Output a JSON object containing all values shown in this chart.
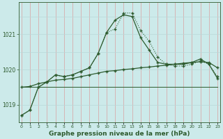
{
  "title": "Graphe pression niveau de la mer (hPa)",
  "background_color": "#cceaea",
  "grid_color_v": "#d9a0a0",
  "grid_color_h": "#b8d8d8",
  "line_color": "#2d5a2d",
  "x_values": [
    0,
    1,
    2,
    3,
    4,
    5,
    6,
    7,
    8,
    9,
    10,
    11,
    12,
    13,
    14,
    15,
    16,
    17,
    18,
    19,
    20,
    21,
    22,
    23
  ],
  "line_peak": [
    1018.7,
    1018.85,
    1019.5,
    1019.65,
    1019.85,
    1019.8,
    1019.85,
    1019.95,
    1020.05,
    1020.45,
    1021.05,
    1021.4,
    1021.55,
    1021.5,
    1020.9,
    1020.55,
    1020.2,
    1020.15,
    1020.15,
    1020.15,
    1020.2,
    1020.3,
    1020.15,
    1019.75
  ],
  "line_dotted": [
    1018.7,
    1018.85,
    1019.5,
    1019.65,
    1019.85,
    1019.8,
    1019.85,
    1019.95,
    1020.05,
    1020.45,
    1021.05,
    1021.15,
    1021.6,
    1021.6,
    1021.1,
    1020.8,
    1020.35,
    1020.15,
    1020.1,
    1020.1,
    1020.15,
    1020.25,
    1020.15,
    1019.8
  ],
  "line_rising": [
    1019.5,
    1019.52,
    1019.6,
    1019.65,
    1019.7,
    1019.72,
    1019.75,
    1019.8,
    1019.85,
    1019.9,
    1019.95,
    1019.97,
    1020.0,
    1020.02,
    1020.05,
    1020.07,
    1020.1,
    1020.12,
    1020.15,
    1020.18,
    1020.2,
    1020.22,
    1020.2,
    1020.05
  ],
  "line_flat": [
    1019.5,
    1019.5,
    1019.5,
    1019.5,
    1019.5,
    1019.5,
    1019.5,
    1019.5,
    1019.5,
    1019.5,
    1019.5,
    1019.5,
    1019.5,
    1019.5,
    1019.5,
    1019.5,
    1019.5,
    1019.5,
    1019.5,
    1019.5,
    1019.5,
    1019.5,
    1019.5,
    1019.5
  ],
  "ylim": [
    1018.5,
    1021.9
  ],
  "yticks": [
    1019,
    1020,
    1021
  ],
  "title_fontsize": 6.5
}
